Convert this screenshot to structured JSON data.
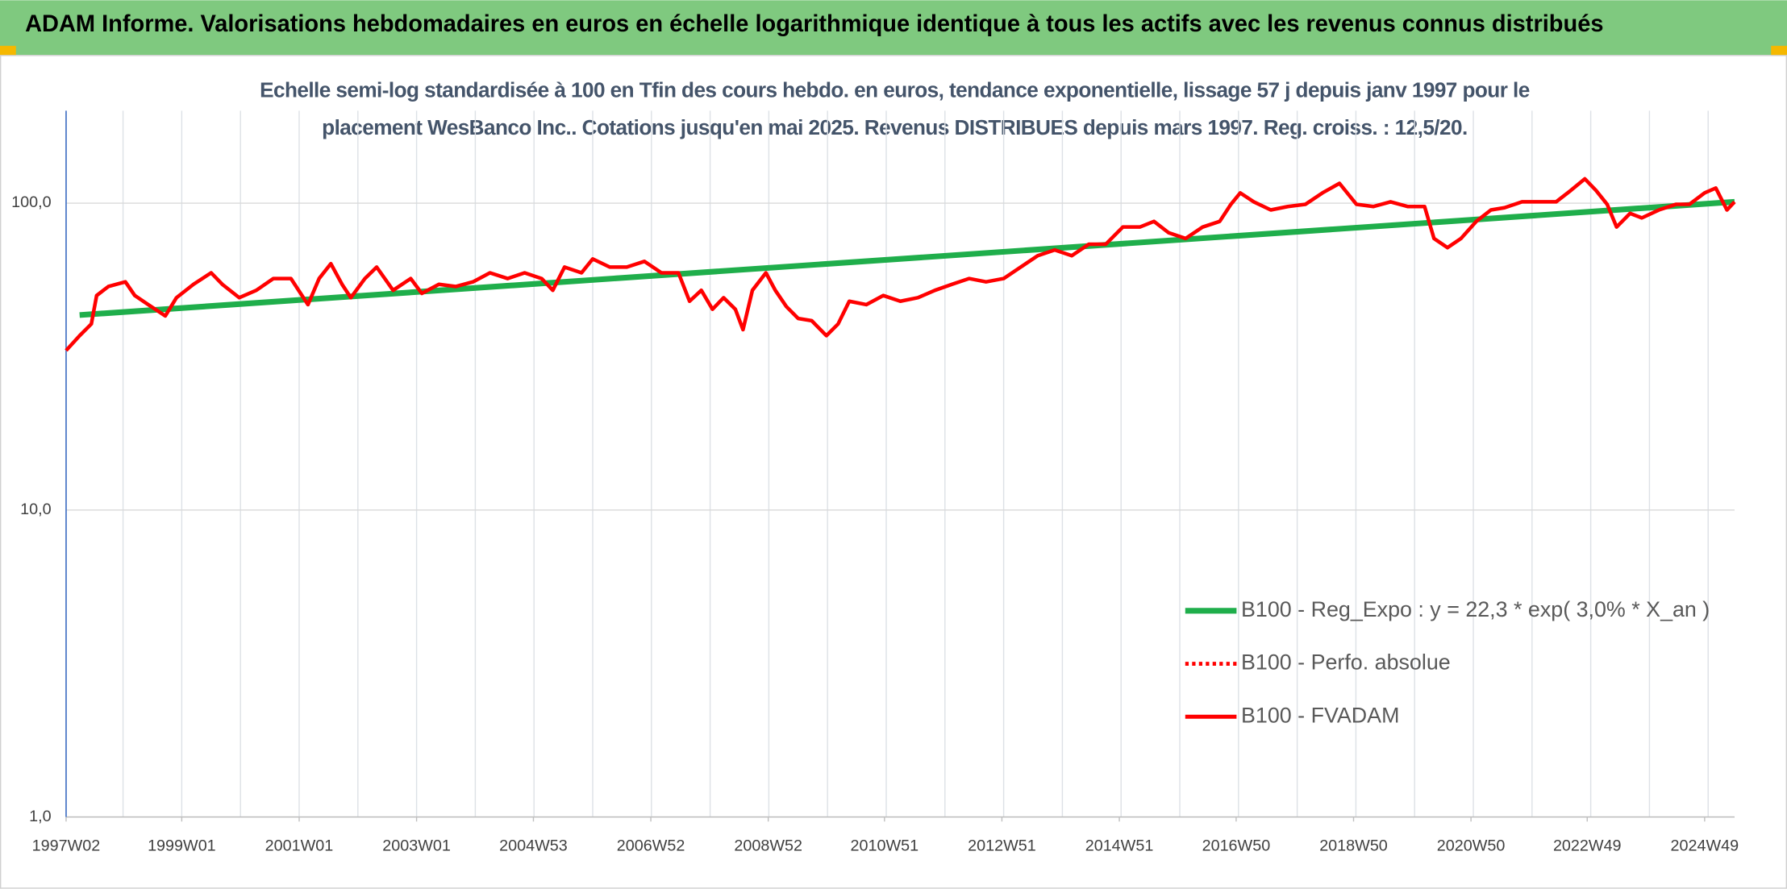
{
  "header": {
    "title": "ADAM Informe. Valorisations hebdomadaires en euros en échelle logarithmique identique à tous les actifs avec les revenus connus distribués"
  },
  "chart_data": {
    "type": "line",
    "title": "Echelle semi-log standardisée à 100 en Tfin des cours hebdo. en euros, tendance exponentielle, lissage 57 j depuis janv 1997 pour le placement WesBanco Inc.. Cotations jusqu'en mai 2025. Revenus DISTRIBUES depuis mars 1997. Reg. croiss. : 12,5/20.",
    "log_y": true,
    "grid": true,
    "legend_position": "lower right",
    "xlim": [
      1997.03,
      2025.45
    ],
    "ylim": [
      1,
      200
    ],
    "yticks": [
      {
        "value": 1,
        "label": "1,0"
      },
      {
        "value": 10,
        "label": "10,0"
      },
      {
        "value": 100,
        "label": "100,0"
      }
    ],
    "xticks": [
      {
        "value": 1997.03,
        "label": "1997W02"
      },
      {
        "value": 1999.0,
        "label": "1999W01"
      },
      {
        "value": 2001.0,
        "label": "2001W01"
      },
      {
        "value": 2003.0,
        "label": "2003W01"
      },
      {
        "value": 2004.99,
        "label": "2004W53"
      },
      {
        "value": 2006.99,
        "label": "2006W52"
      },
      {
        "value": 2008.99,
        "label": "2008W52"
      },
      {
        "value": 2010.97,
        "label": "2010W51"
      },
      {
        "value": 2012.97,
        "label": "2012W51"
      },
      {
        "value": 2014.97,
        "label": "2014W51"
      },
      {
        "value": 2016.96,
        "label": "2016W50"
      },
      {
        "value": 2018.96,
        "label": "2018W50"
      },
      {
        "value": 2020.96,
        "label": "2020W50"
      },
      {
        "value": 2022.94,
        "label": "2022W49"
      },
      {
        "value": 2024.94,
        "label": "2024W49"
      }
    ],
    "minor_xticks": [
      1998,
      1999,
      2000,
      2001,
      2002,
      2003,
      2004,
      2005,
      2006,
      2007,
      2008,
      2009,
      2010,
      2011,
      2012,
      2013,
      2014,
      2015,
      2016,
      2017,
      2018,
      2019,
      2020,
      2021,
      2022,
      2023,
      2024,
      2025
    ],
    "series": [
      {
        "name": "B100 - Reg_Expo : y = 22,3 * exp( 3,0% *  X_an )",
        "color": "#1fae4b",
        "dash": "solid",
        "x": [
          1997.26,
          2025.45
        ],
        "values": [
          43.2,
          101
        ]
      },
      {
        "name": "B100 - Perfo. absolue",
        "color": "#ff0000",
        "dash": "dotted"
      },
      {
        "name": "B100 - FVADAM",
        "color": "#ff0000",
        "dash": "solid",
        "x": [
          1997.03,
          1997.26,
          1997.46,
          1997.55,
          1997.75,
          1998.04,
          1998.2,
          1998.43,
          1998.72,
          1998.91,
          1999.2,
          1999.5,
          1999.69,
          1999.98,
          2000.27,
          2000.56,
          2000.86,
          2001.15,
          2001.34,
          2001.54,
          2001.73,
          2001.88,
          2002.12,
          2002.32,
          2002.6,
          2002.9,
          2003.09,
          2003.38,
          2003.67,
          2003.96,
          2004.25,
          2004.55,
          2004.84,
          2005.13,
          2005.32,
          2005.52,
          2005.81,
          2006.0,
          2006.29,
          2006.58,
          2006.88,
          2007.17,
          2007.46,
          2007.65,
          2007.85,
          2008.04,
          2008.23,
          2008.43,
          2008.56,
          2008.72,
          2008.95,
          2009.11,
          2009.3,
          2009.5,
          2009.73,
          2009.98,
          2010.18,
          2010.37,
          2010.66,
          2010.95,
          2011.24,
          2011.54,
          2011.83,
          2012.12,
          2012.41,
          2012.7,
          2013.0,
          2013.29,
          2013.58,
          2013.87,
          2014.16,
          2014.45,
          2014.74,
          2015.03,
          2015.32,
          2015.56,
          2015.81,
          2016.1,
          2016.39,
          2016.68,
          2016.87,
          2017.03,
          2017.26,
          2017.55,
          2017.84,
          2018.14,
          2018.43,
          2018.72,
          2019.01,
          2019.3,
          2019.59,
          2019.88,
          2020.17,
          2020.33,
          2020.56,
          2020.79,
          2021.05,
          2021.3,
          2021.53,
          2021.83,
          2022.12,
          2022.41,
          2022.66,
          2022.9,
          2023.09,
          2023.28,
          2023.44,
          2023.67,
          2023.87,
          2024.16,
          2024.45,
          2024.68,
          2024.94,
          2025.13,
          2025.32,
          2025.45
        ],
        "values": [
          33.1,
          37,
          40.4,
          50,
          53.5,
          55.4,
          50,
          46.7,
          42.9,
          49.2,
          54.4,
          59.3,
          54.4,
          49.2,
          52,
          56.8,
          56.8,
          46.7,
          56.8,
          63.5,
          54.4,
          49.2,
          56.8,
          61.9,
          52,
          56.8,
          50.8,
          54.4,
          53.5,
          55.4,
          59.3,
          56.8,
          59.3,
          56.8,
          52,
          61.9,
          59.3,
          65.8,
          61.9,
          61.9,
          64.6,
          59.3,
          59.3,
          47.9,
          52,
          45.1,
          49.2,
          45.1,
          38.7,
          52,
          59.3,
          52,
          46,
          42.1,
          41.4,
          37,
          40.4,
          47.9,
          46.7,
          50,
          47.9,
          49.2,
          52,
          54.4,
          56.8,
          55.4,
          56.8,
          61.9,
          67.4,
          70.4,
          67.4,
          73.5,
          73.5,
          83.6,
          83.6,
          87.2,
          80.1,
          76.7,
          83.6,
          87.2,
          99.1,
          108,
          101,
          95,
          97.5,
          99.1,
          108,
          116,
          99.1,
          97.5,
          101,
          97.5,
          97.5,
          76.7,
          71.6,
          76.7,
          87.2,
          95,
          96.6,
          101,
          101,
          101,
          110,
          120,
          110,
          99.1,
          83.6,
          92.6,
          89.5,
          95,
          99.1,
          99.1,
          108,
          112,
          95,
          101
        ]
      }
    ]
  }
}
